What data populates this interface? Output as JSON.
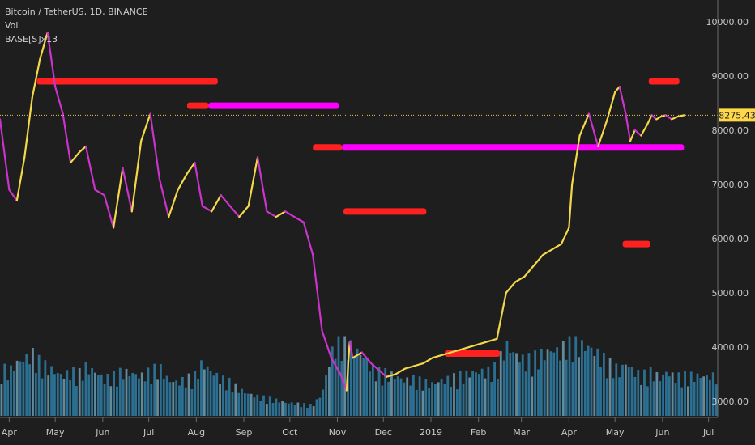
{
  "legend": {
    "symbol": "Bitcoin / TetherUS, 1D, BINANCE",
    "volume": "Vol",
    "indicator": "BASE[S]x13"
  },
  "chart_data": {
    "type": "line",
    "ylim": [
      2850,
      10250
    ],
    "y_ticks": [
      "10000.00",
      "9000.00",
      "8000.00",
      "7000.00",
      "6000.00",
      "5000.00",
      "4000.00",
      "3000.00"
    ],
    "y_tick_values": [
      10000,
      9000,
      8000,
      7000,
      6000,
      5000,
      4000,
      3000
    ],
    "x_ticks": [
      "Apr",
      "May",
      "Jun",
      "Jul",
      "Aug",
      "Sep",
      "Oct",
      "Nov",
      "Dec",
      "2019",
      "Feb",
      "Mar",
      "Apr",
      "May",
      "Jun",
      "Jul"
    ],
    "x_tick_days": [
      0,
      30,
      61,
      91,
      122,
      153,
      183,
      214,
      244,
      275,
      306,
      334,
      365,
      395,
      426,
      456
    ],
    "x_range_days": [
      -6,
      462
    ],
    "current_price": {
      "label": "8275.43",
      "value": 8275.43
    },
    "price_series": {
      "name": "",
      "days": [
        -6,
        0,
        5,
        10,
        15,
        20,
        25,
        30,
        35,
        40,
        46,
        50,
        56,
        62,
        68,
        74,
        80,
        86,
        92,
        98,
        104,
        110,
        116,
        121,
        126,
        132,
        138,
        144,
        150,
        156,
        162,
        168,
        174,
        180,
        186,
        192,
        198,
        204,
        210,
        216,
        220,
        222,
        224,
        230,
        236,
        240,
        246,
        252,
        258,
        264,
        270,
        276,
        282,
        288,
        294,
        300,
        306,
        312,
        318,
        324,
        330,
        336,
        342,
        348,
        354,
        360,
        365,
        367,
        372,
        378,
        384,
        390,
        395,
        398,
        402,
        405,
        408,
        412,
        416,
        419,
        422,
        425,
        428,
        432,
        436,
        440
      ],
      "values": [
        8200,
        6900,
        6700,
        7500,
        8600,
        9300,
        9800,
        8800,
        8300,
        7400,
        7600,
        7700,
        6900,
        6800,
        6200,
        7300,
        6500,
        7800,
        8300,
        7100,
        6400,
        6900,
        7200,
        7400,
        6600,
        6500,
        6800,
        6600,
        6400,
        6600,
        7500,
        6500,
        6400,
        6500,
        6400,
        6300,
        5700,
        4300,
        3800,
        3500,
        3200,
        4100,
        3800,
        3900,
        3700,
        3600,
        3450,
        3500,
        3600,
        3650,
        3700,
        3800,
        3850,
        3900,
        3950,
        4000,
        4050,
        4100,
        4150,
        5000,
        5200,
        5300,
        5500,
        5700,
        5800,
        5900,
        6200,
        7000,
        7900,
        8300,
        7700,
        8200,
        8700,
        8800,
        8300,
        7800,
        8000,
        7900,
        8100,
        8275,
        8200,
        8250,
        8275,
        8200,
        8250,
        8275
      ],
      "color_up": "#f5d84a",
      "color_down": "#cc33cc"
    },
    "volume_series": {
      "name": "",
      "color": "#2e7fa8",
      "values_relative": [
        0.55,
        0.5,
        0.6,
        0.65,
        0.7,
        0.6,
        0.55,
        0.5,
        0.45,
        0.5,
        0.48,
        0.55,
        0.5,
        0.42,
        0.45,
        0.5,
        0.48,
        0.45,
        0.5,
        0.55,
        0.4,
        0.38,
        0.42,
        0.45,
        0.6,
        0.5,
        0.42,
        0.38,
        0.3,
        0.25,
        0.22,
        0.2,
        0.18,
        0.15,
        0.14,
        0.13,
        0.12,
        0.25,
        0.7,
        0.9,
        0.85,
        0.8,
        0.75,
        0.7,
        0.55,
        0.5,
        0.48,
        0.45,
        0.4,
        0.42,
        0.38,
        0.36,
        0.4,
        0.42,
        0.45,
        0.48,
        0.5,
        0.5,
        0.55,
        0.8,
        0.7,
        0.62,
        0.65,
        0.7,
        0.75,
        0.72,
        0.9,
        0.85,
        0.8,
        0.78,
        0.7,
        0.6,
        0.55,
        0.5,
        0.6,
        0.55,
        0.5,
        0.45,
        0.48,
        0.5,
        0.46,
        0.42,
        0.5,
        0.46,
        0.44,
        0.45
      ],
      "ylim_relative": [
        0,
        1
      ],
      "area_top_value": 4200,
      "area_bottom_value": 2850
    },
    "levels": [
      {
        "day_start": 18,
        "day_end": 136,
        "value": 8900,
        "color": "#ff2020"
      },
      {
        "day_start": 116,
        "day_end": 130,
        "value": 8450,
        "color": "#ff2020"
      },
      {
        "day_start": 130,
        "day_end": 215,
        "value": 8450,
        "color": "#ff00ff"
      },
      {
        "day_start": 198,
        "day_end": 217,
        "value": 7680,
        "color": "#ff2020"
      },
      {
        "day_start": 217,
        "day_end": 440,
        "value": 7680,
        "color": "#ff00ff"
      },
      {
        "day_start": 218,
        "day_end": 272,
        "value": 6500,
        "color": "#ff2020"
      },
      {
        "day_start": 284,
        "day_end": 320,
        "value": 3880,
        "color": "#ff2020"
      },
      {
        "day_start": 400,
        "day_end": 418,
        "value": 5900,
        "color": "#ff2020"
      },
      {
        "day_start": 417,
        "day_end": 437,
        "value": 8900,
        "color": "#ff2020"
      }
    ]
  }
}
